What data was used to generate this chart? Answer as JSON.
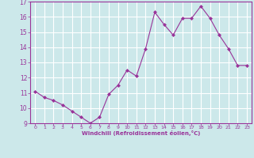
{
  "x": [
    0,
    1,
    2,
    3,
    4,
    5,
    6,
    7,
    8,
    9,
    10,
    11,
    12,
    13,
    14,
    15,
    16,
    17,
    18,
    19,
    20,
    21,
    22,
    23
  ],
  "y": [
    11.1,
    10.7,
    10.5,
    10.2,
    9.8,
    9.4,
    9.0,
    9.4,
    10.9,
    11.5,
    12.5,
    12.1,
    13.9,
    16.3,
    15.5,
    14.8,
    15.9,
    15.9,
    16.7,
    15.9,
    14.8,
    13.9,
    12.8,
    12.8
  ],
  "line_color": "#993399",
  "marker": "D",
  "marker_size": 2,
  "bg_color": "#cce8ea",
  "grid_color": "#ffffff",
  "xlabel": "Windchill (Refroidissement éolien,°C)",
  "xlabel_color": "#993399",
  "tick_color": "#993399",
  "label_color": "#993399",
  "ylim": [
    9,
    17
  ],
  "xlim": [
    -0.5,
    23.5
  ],
  "yticks": [
    9,
    10,
    11,
    12,
    13,
    14,
    15,
    16,
    17
  ],
  "xticks": [
    0,
    1,
    2,
    3,
    4,
    5,
    6,
    7,
    8,
    9,
    10,
    11,
    12,
    13,
    14,
    15,
    16,
    17,
    18,
    19,
    20,
    21,
    22,
    23
  ]
}
